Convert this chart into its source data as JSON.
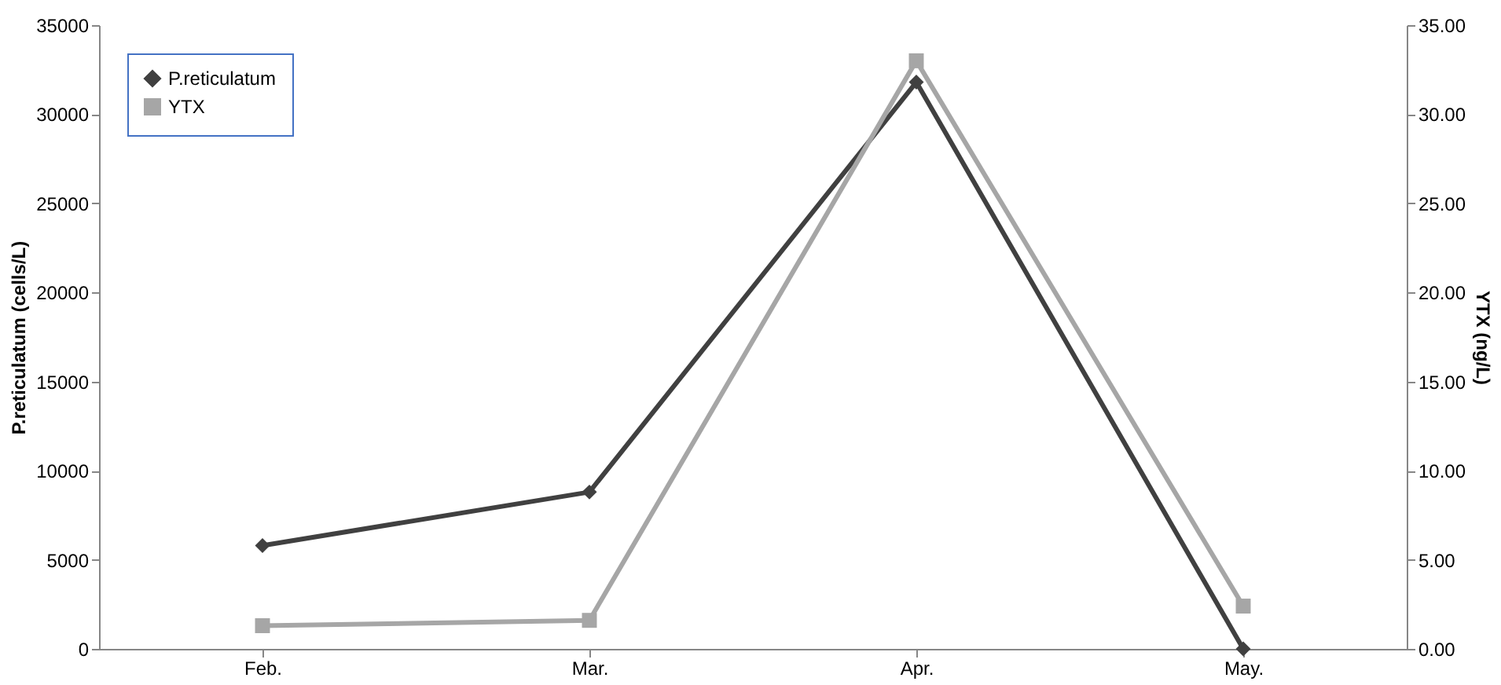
{
  "chart_data": {
    "type": "line",
    "ylabel": "P.reticulatum (cells/L)",
    "y2label": "YTX (ng/L)",
    "categories": [
      "Feb.",
      "Mar.",
      "Apr.",
      "May."
    ],
    "series": [
      {
        "name": "P.reticulatum",
        "color": "#404040",
        "marker": "diamond",
        "values": [
          5800,
          8800,
          31800,
          0
        ]
      },
      {
        "name": "YTX",
        "color": "#a6a6a6",
        "marker": "square",
        "axis": "y2",
        "values": [
          1.3,
          1.6,
          33.0,
          2.4
        ]
      }
    ],
    "ylim": [
      0,
      35000
    ],
    "yticks": [
      0,
      5000,
      10000,
      15000,
      20000,
      25000,
      30000,
      35000
    ],
    "y2lim": [
      0,
      35
    ],
    "y2ticks": [
      {
        "value": 0,
        "label": "0.00"
      },
      {
        "value": 5,
        "label": "5.00"
      },
      {
        "value": 10,
        "label": "10.00"
      },
      {
        "value": 15,
        "label": "15.00"
      },
      {
        "value": 20,
        "label": "20.00"
      },
      {
        "value": 25,
        "label": "25.00"
      },
      {
        "value": 30,
        "label": "30.00"
      },
      {
        "value": 35,
        "label": "35.00"
      }
    ],
    "grid": false,
    "legend": "top left",
    "line_style": "solid"
  }
}
